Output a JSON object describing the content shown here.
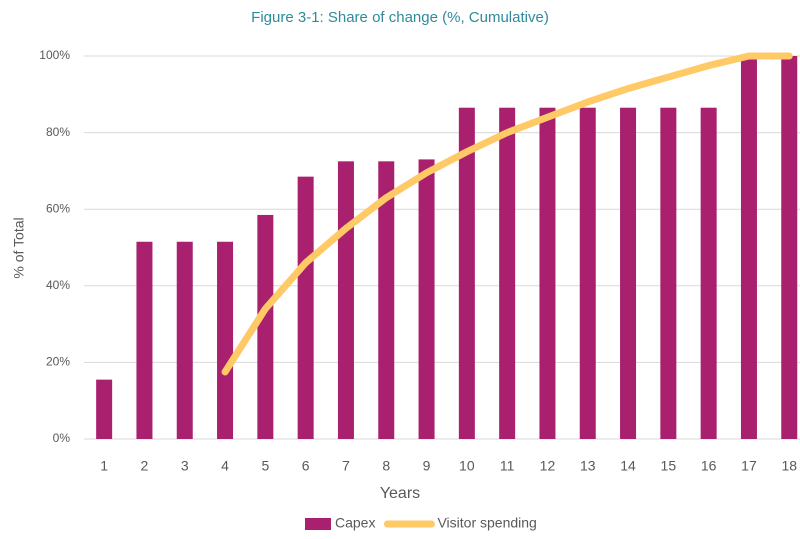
{
  "chart_data": {
    "type": "bar_line",
    "title": "Figure 3-1:  Share of change (%, Cumulative)",
    "x_label": "Years",
    "y_label": "% of Total",
    "categories": [
      "1",
      "2",
      "3",
      "4",
      "5",
      "6",
      "7",
      "8",
      "9",
      "10",
      "11",
      "12",
      "13",
      "14",
      "15",
      "16",
      "17",
      "18"
    ],
    "series": [
      {
        "name": "Capex",
        "type": "bar",
        "color": "#a8206e",
        "values": [
          15.5,
          51.5,
          51.5,
          51.5,
          58.5,
          68.5,
          72.5,
          72.5,
          73,
          86.5,
          86.5,
          86.5,
          86.5,
          86.5,
          86.5,
          86.5,
          100,
          100
        ]
      },
      {
        "name": "Visitor spending",
        "type": "line",
        "color": "#ffc966",
        "values": [
          null,
          null,
          null,
          17.5,
          34,
          46,
          55,
          63,
          69.5,
          75,
          80,
          84,
          88,
          91.5,
          94.5,
          97.5,
          100,
          100
        ]
      }
    ],
    "ylim": [
      0,
      100
    ],
    "yticks": [
      {
        "value": 0,
        "label": "0%"
      },
      {
        "value": 20,
        "label": "20%"
      },
      {
        "value": 40,
        "label": "40%"
      },
      {
        "value": 60,
        "label": "60%"
      },
      {
        "value": 80,
        "label": "80%"
      },
      {
        "value": 100,
        "label": "100%"
      }
    ],
    "grid": true,
    "legend": "bottom"
  }
}
